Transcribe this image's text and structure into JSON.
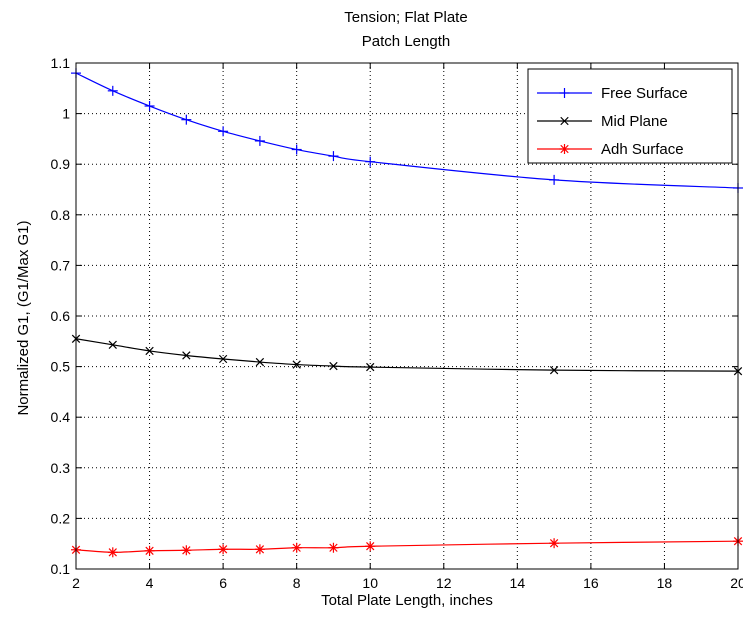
{
  "chart_data": {
    "type": "line",
    "title": [
      "Tension; Flat Plate",
      "Patch Length"
    ],
    "xlabel": "Total Plate Length, inches",
    "ylabel": "Normalized G1, (G1/Max G1)",
    "xlim": [
      2,
      20
    ],
    "ylim": [
      0.1,
      1.1
    ],
    "xticks": [
      "2",
      "4",
      "6",
      "8",
      "10",
      "12",
      "14",
      "16",
      "18",
      "20"
    ],
    "yticks": [
      "0.1",
      "0.2",
      "0.3",
      "0.4",
      "0.5",
      "0.6",
      "0.7",
      "0.8",
      "0.9",
      "1",
      "1.1"
    ],
    "grid": true,
    "legend_position": "top-right",
    "x": [
      2,
      3,
      4,
      5,
      6,
      7,
      8,
      9,
      10,
      15,
      20
    ],
    "series": [
      {
        "name": "Free Surface",
        "color": "#0000ff",
        "marker": "plus",
        "values": [
          1.08,
          1.045,
          1.015,
          0.988,
          0.965,
          0.946,
          0.929,
          0.916,
          0.905,
          0.869,
          0.853
        ]
      },
      {
        "name": "Mid Plane",
        "color": "#000000",
        "marker": "x",
        "values": [
          0.555,
          0.543,
          0.531,
          0.522,
          0.515,
          0.509,
          0.504,
          0.501,
          0.499,
          0.493,
          0.491
        ]
      },
      {
        "name": "Adh Surface",
        "color": "#ff0000",
        "marker": "star",
        "values": [
          0.138,
          0.133,
          0.136,
          0.137,
          0.139,
          0.139,
          0.142,
          0.142,
          0.145,
          0.151,
          0.155
        ]
      }
    ]
  }
}
